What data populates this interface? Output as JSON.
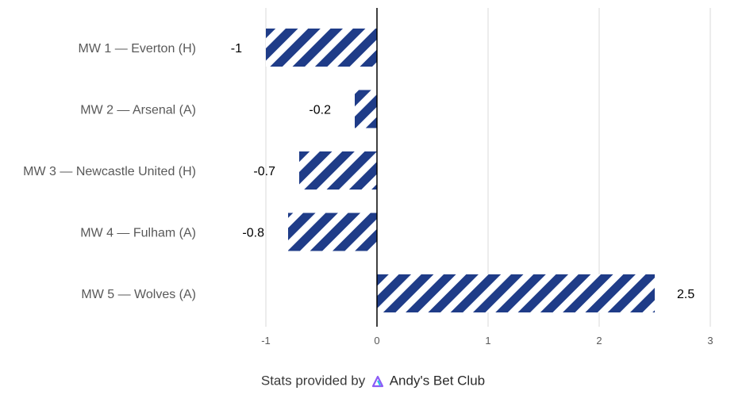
{
  "chart_data": {
    "type": "bar",
    "orientation": "horizontal",
    "categories": [
      "MW 1 — Everton (H)",
      "MW 2 — Arsenal (A)",
      "MW 3 — Newcastle United (H)",
      "MW 4 — Fulham (A)",
      "MW 5 — Wolves (A)"
    ],
    "values": [
      -1,
      -0.2,
      -0.7,
      -0.8,
      2.5
    ],
    "data_labels": [
      "-1",
      "-0.2",
      "-0.7",
      "-0.8",
      "2.5"
    ],
    "xlim": [
      -1,
      3
    ],
    "xticks": [
      "-1",
      "0",
      "1",
      "2",
      "3"
    ],
    "grid": "vertical",
    "bar_fill": "diagonal-stripes",
    "bar_color": "#1f3c88",
    "title": "",
    "xlabel": "",
    "ylabel": ""
  },
  "footer": {
    "prefix": "Stats provided by",
    "brand": "Andy's Bet Club",
    "icon": "andys-bet-club-logo-icon",
    "icon_color": "#8b5cf6"
  }
}
